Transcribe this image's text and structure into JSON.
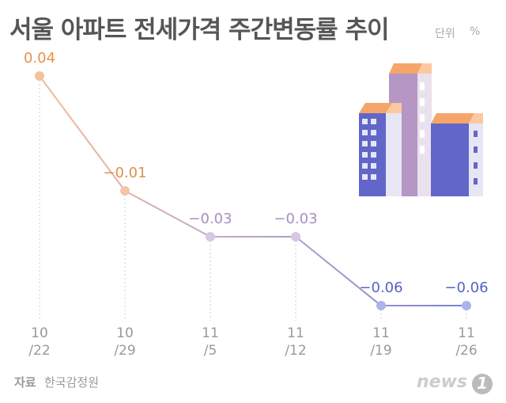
{
  "chart_data": {
    "type": "line",
    "title": "서울 아파트 전세가격 주간변동률 추이",
    "unit_label": "단위",
    "unit": "%",
    "categories": [
      "10\n/22",
      "10\n/29",
      "11\n/5",
      "11\n/12",
      "11\n/19",
      "11\n/26"
    ],
    "values": [
      0.04,
      -0.01,
      -0.03,
      -0.03,
      -0.06,
      -0.06
    ],
    "value_labels": [
      "0.04",
      "−0.01",
      "−0.03",
      "−0.03",
      "−0.06",
      "−0.06"
    ],
    "point_colors": [
      "#f6c29c",
      "#f3c6a5",
      "#d8c6e6",
      "#d8c6e6",
      "#aab3ec",
      "#aab3ec"
    ],
    "label_colors": [
      "#e8914a",
      "#df904c",
      "#a68fc2",
      "#a68fc2",
      "#5563bd",
      "#5563bd"
    ],
    "line_colors": [
      "#f5bb8f",
      "#bfa6cf",
      "#7c83cf"
    ],
    "ylim": [
      -0.07,
      0.05
    ],
    "source_label": "자료",
    "source": "한국감정원",
    "logo": "news",
    "logo_number": "1"
  }
}
